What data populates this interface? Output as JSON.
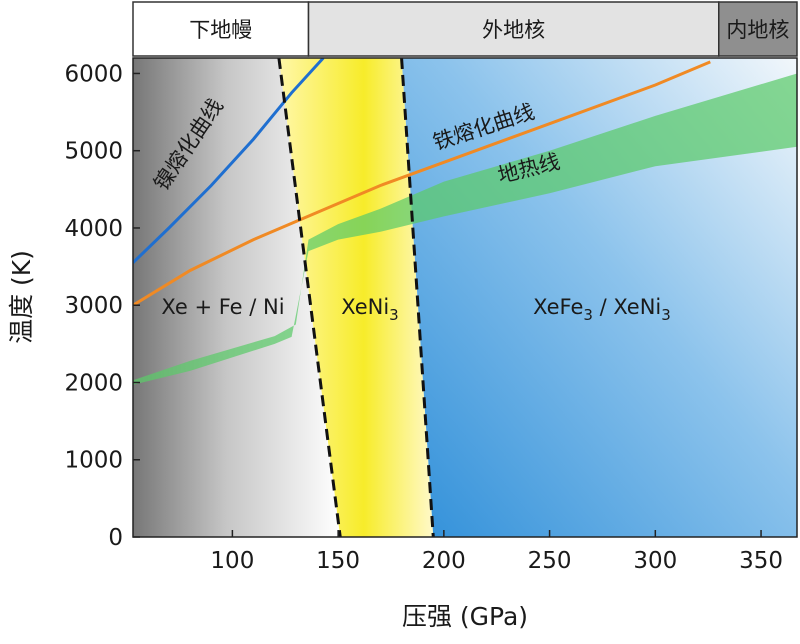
{
  "chart_data": {
    "type": "phase-diagram",
    "xlabel": "压强 (GPa)",
    "ylabel": "温度 (K)",
    "xlim": [
      53,
      367
    ],
    "ylim": [
      0,
      6200
    ],
    "xticks": [
      100,
      150,
      200,
      250,
      300,
      350
    ],
    "yticks": [
      0,
      1000,
      2000,
      3000,
      4000,
      5000,
      6000
    ],
    "layers": [
      {
        "label": "下地幔",
        "from": 53,
        "to": 136,
        "fill": "#ffffff"
      },
      {
        "label": "外地核",
        "from": 136,
        "to": 330,
        "fill": "#e3e3e3"
      },
      {
        "label": "内地核",
        "from": 330,
        "to": 367,
        "fill": "#8f8f8f"
      }
    ],
    "regions": [
      {
        "label": "Xe + Fe / Ni",
        "color": "#7a7a7a"
      },
      {
        "label": "XeNi",
        "sub": "3",
        "color": "#f7ec2a"
      },
      {
        "label": "XeFe",
        "sub": "3",
        "tail": " / XeNi",
        "tail_sub": "3",
        "color": "#2f8fd9"
      }
    ],
    "boundaries": [
      {
        "points": [
          [
            122,
            6200
          ],
          [
            151,
            0
          ]
        ]
      },
      {
        "points": [
          [
            180,
            6200
          ],
          [
            195,
            0
          ]
        ]
      }
    ],
    "curves": [
      {
        "name": "镍熔化曲线",
        "color": "#1f6fd0",
        "points": [
          [
            53,
            3550
          ],
          [
            70,
            4000
          ],
          [
            90,
            4550
          ],
          [
            110,
            5150
          ],
          [
            128,
            5750
          ],
          [
            143,
            6200
          ]
        ]
      },
      {
        "name": "铁熔化曲线",
        "color": "#f08a24",
        "points": [
          [
            53,
            3000
          ],
          [
            80,
            3450
          ],
          [
            110,
            3850
          ],
          [
            140,
            4200
          ],
          [
            170,
            4550
          ],
          [
            200,
            4850
          ],
          [
            250,
            5350
          ],
          [
            300,
            5850
          ],
          [
            326,
            6150
          ]
        ]
      }
    ],
    "geotherm": {
      "name": "地热线",
      "color": "#5ccb6a",
      "upper": [
        [
          53,
          2030
        ],
        [
          80,
          2280
        ],
        [
          120,
          2600
        ],
        [
          130,
          2750
        ],
        [
          136,
          3850
        ],
        [
          150,
          4050
        ],
        [
          170,
          4250
        ],
        [
          200,
          4600
        ],
        [
          250,
          5000
        ],
        [
          300,
          5450
        ],
        [
          367,
          6000
        ]
      ],
      "lower": [
        [
          367,
          5050
        ],
        [
          300,
          4800
        ],
        [
          250,
          4450
        ],
        [
          200,
          4150
        ],
        [
          170,
          3950
        ],
        [
          150,
          3850
        ],
        [
          136,
          3700
        ],
        [
          128,
          2590
        ],
        [
          120,
          2500
        ],
        [
          80,
          2150
        ],
        [
          53,
          1970
        ]
      ]
    }
  }
}
